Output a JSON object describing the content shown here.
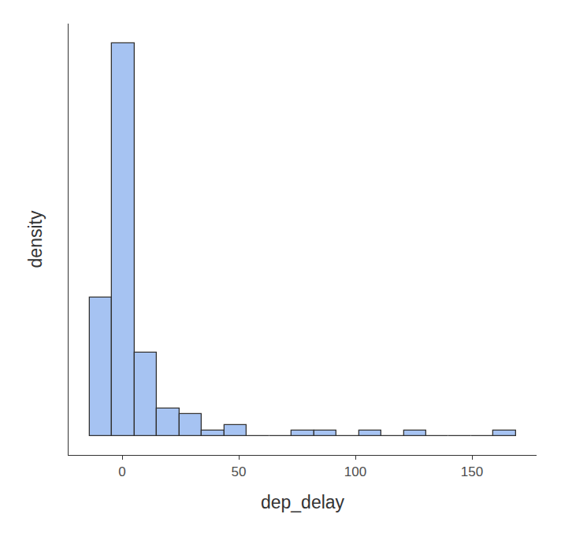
{
  "chart_data": {
    "type": "histogram",
    "x_label": "dep_delay",
    "y_label": "density",
    "bins": [
      -13.9,
      -4.28,
      5.34,
      14.96,
      24.58,
      34.2,
      43.82,
      53.44,
      63.06,
      72.68,
      82.3,
      91.92,
      101.54,
      111.16,
      120.78,
      130.4,
      140.02,
      149.64,
      159.26,
      168.88
    ],
    "values": [
      0.0203,
      0.0577,
      0.0122,
      0.00406,
      0.00325,
      0.000812,
      0.00162,
      0,
      0,
      0.000812,
      0.000812,
      0,
      0.000812,
      0,
      0.000812,
      0,
      0,
      0,
      0.000812
    ],
    "color": "#a6c3f2",
    "xlim": [
      -23,
      177.7
    ],
    "xticks": [
      0,
      50,
      100,
      150
    ],
    "ylim": [
      -0.0028,
      0.0606
    ],
    "tick_labels": "x",
    "grid": false
  }
}
